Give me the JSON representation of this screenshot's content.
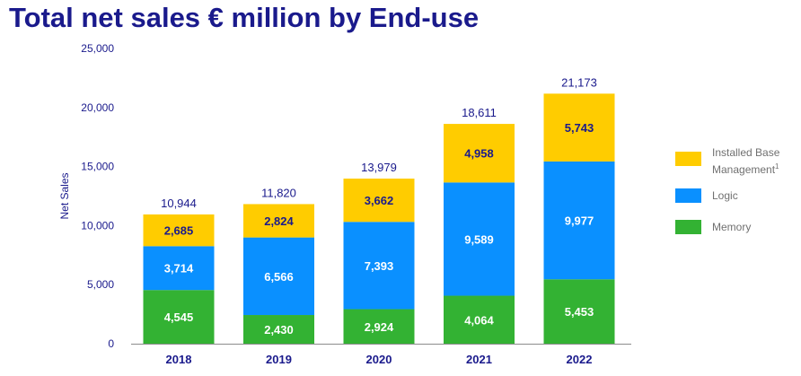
{
  "title": "Total net sales € million by End-use",
  "chart_data": {
    "type": "bar",
    "stacked": true,
    "title": "Total net sales € million by End-use",
    "xlabel": "",
    "ylabel": "Net Sales",
    "ylim": [
      0,
      25000
    ],
    "yticks": [
      "0",
      "5,000",
      "10,000",
      "15,000",
      "20,000",
      "25,000"
    ],
    "ytick_values": [
      0,
      5000,
      10000,
      15000,
      20000,
      25000
    ],
    "categories": [
      "2018",
      "2019",
      "2020",
      "2021",
      "2022"
    ],
    "series": [
      {
        "name": "Memory",
        "color": "#33b233",
        "values": [
          4545,
          2430,
          2924,
          4064,
          5453
        ],
        "labels": [
          "4,545",
          "2,430",
          "2,924",
          "4,064",
          "5,453"
        ]
      },
      {
        "name": "Logic",
        "color": "#0a90ff",
        "values": [
          3714,
          6566,
          7393,
          9589,
          9977
        ],
        "labels": [
          "3,714",
          "6,566",
          "7,393",
          "9,589",
          "9,977"
        ]
      },
      {
        "name": "Installed Base Management",
        "display_name": "Installed Base Management¹",
        "color": "#ffcc00",
        "values": [
          2685,
          2824,
          3662,
          4958,
          5743
        ],
        "labels": [
          "2,685",
          "2,824",
          "3,662",
          "4,958",
          "5,743"
        ]
      }
    ],
    "totals": [
      10944,
      11820,
      13979,
      18611,
      21173
    ],
    "total_labels": [
      "10,944",
      "11,820",
      "13,979",
      "18,611",
      "21,173"
    ],
    "grid": false,
    "legend_position": "right"
  },
  "legend": {
    "items": [
      {
        "line1": "Installed Base",
        "line2": "Management",
        "sup": "1",
        "color": "#ffcc00"
      },
      {
        "line1": "Logic",
        "color": "#0a90ff"
      },
      {
        "line1": "Memory",
        "color": "#33b233"
      }
    ]
  },
  "colors": {
    "title": "#1a1a8c",
    "axis_text": "#1a1a8c",
    "axis_line": "#8c8c8c",
    "legend_text": "#707070"
  }
}
